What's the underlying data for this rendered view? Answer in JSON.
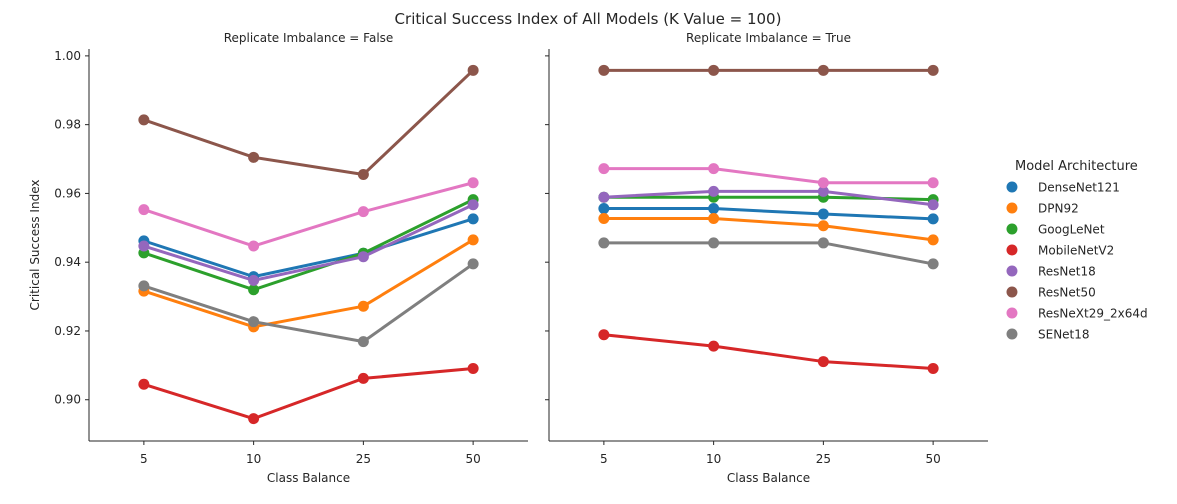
{
  "figure": {
    "suptitle": "Critical Success Index of All Models (K Value = 100)",
    "legend_title": "Model Architecture"
  },
  "chart_data": [
    {
      "type": "line",
      "title": "Replicate Imbalance = False",
      "xlabel": "Class Balance",
      "ylabel": "Critical Success Index",
      "categories": [
        "5",
        "10",
        "25",
        "50"
      ],
      "ylim": [
        0.888,
        1.002
      ],
      "yticks": [
        "0.90",
        "0.92",
        "0.94",
        "0.96",
        "0.98",
        "1.00"
      ],
      "grid": false,
      "legend": "right",
      "series": [
        {
          "name": "DenseNet121",
          "color": "#1f77b4",
          "values": [
            0.9462,
            0.9358,
            0.9426,
            0.9526
          ]
        },
        {
          "name": "DPN92",
          "color": "#ff7f0e",
          "values": [
            0.9316,
            0.9212,
            0.9272,
            0.9465
          ]
        },
        {
          "name": "GoogLeNet",
          "color": "#2ca02c",
          "values": [
            0.9427,
            0.932,
            0.9426,
            0.9582
          ]
        },
        {
          "name": "MobileNetV2",
          "color": "#d62728",
          "values": [
            0.9045,
            0.8945,
            0.9062,
            0.9091
          ]
        },
        {
          "name": "ResNet18",
          "color": "#9467bd",
          "values": [
            0.9447,
            0.9347,
            0.9416,
            0.9567
          ]
        },
        {
          "name": "ResNet50",
          "color": "#8c564b",
          "values": [
            0.9814,
            0.9705,
            0.9655,
            0.9958
          ]
        },
        {
          "name": "ResNeXt29_2x64d",
          "color": "#e377c2",
          "values": [
            0.9553,
            0.9447,
            0.9547,
            0.9631
          ]
        },
        {
          "name": "SENet18",
          "color": "#7f7f7f",
          "values": [
            0.9331,
            0.9227,
            0.9169,
            0.9395
          ]
        }
      ]
    },
    {
      "type": "line",
      "title": "Replicate Imbalance = True",
      "xlabel": "Class Balance",
      "ylabel": "",
      "categories": [
        "5",
        "10",
        "25",
        "50"
      ],
      "ylim": [
        0.888,
        1.002
      ],
      "grid": false,
      "series": [
        {
          "name": "DenseNet121",
          "color": "#1f77b4",
          "values": [
            0.9556,
            0.9556,
            0.954,
            0.9526
          ]
        },
        {
          "name": "DPN92",
          "color": "#ff7f0e",
          "values": [
            0.9527,
            0.9527,
            0.9506,
            0.9465
          ]
        },
        {
          "name": "GoogLeNet",
          "color": "#2ca02c",
          "values": [
            0.9589,
            0.9589,
            0.9589,
            0.9582
          ]
        },
        {
          "name": "MobileNetV2",
          "color": "#d62728",
          "values": [
            0.9189,
            0.9156,
            0.9111,
            0.9091
          ]
        },
        {
          "name": "ResNet18",
          "color": "#9467bd",
          "values": [
            0.9589,
            0.9606,
            0.9606,
            0.9567
          ]
        },
        {
          "name": "ResNet50",
          "color": "#8c564b",
          "values": [
            0.9958,
            0.9958,
            0.9958,
            0.9958
          ]
        },
        {
          "name": "ResNeXt29_2x64d",
          "color": "#e377c2",
          "values": [
            0.9672,
            0.9672,
            0.9631,
            0.9631
          ]
        },
        {
          "name": "SENet18",
          "color": "#7f7f7f",
          "values": [
            0.9456,
            0.9456,
            0.9456,
            0.9395
          ]
        }
      ]
    }
  ]
}
